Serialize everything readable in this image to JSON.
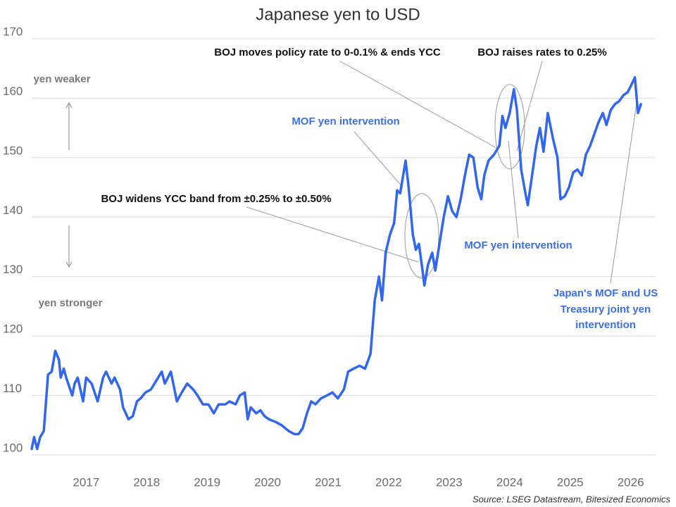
{
  "chart_data": {
    "type": "line",
    "title": "Japanese yen to USD",
    "x": [
      2016.6,
      2016.64,
      2016.69,
      2016.74,
      2016.8,
      2016.87,
      2016.93,
      2016.99,
      2017.05,
      2017.08,
      2017.13,
      2017.17,
      2017.27,
      2017.31,
      2017.36,
      2017.45,
      2017.5,
      2017.59,
      2017.69,
      2017.78,
      2017.83,
      2017.92,
      2017.97,
      2018.06,
      2018.11,
      2018.2,
      2018.27,
      2018.34,
      2018.4,
      2018.48,
      2018.57,
      2018.66,
      2018.75,
      2018.8,
      2018.85,
      2018.9,
      2018.94,
      2019.0,
      2019.08,
      2019.17,
      2019.27,
      2019.34,
      2019.43,
      2019.52,
      2019.61,
      2019.69,
      2019.8,
      2019.87,
      2019.97,
      2020.04,
      2020.12,
      2020.17,
      2020.22,
      2020.31,
      2020.38,
      2020.45,
      2020.52,
      2020.64,
      2020.73,
      2020.85,
      2020.94,
      2021.01,
      2021.08,
      2021.15,
      2021.22,
      2021.29,
      2021.38,
      2021.48,
      2021.57,
      2021.66,
      2021.76,
      2021.83,
      2021.92,
      2022.02,
      2022.11,
      2022.2,
      2022.27,
      2022.34,
      2022.39,
      2022.45,
      2022.52,
      2022.59,
      2022.64,
      2022.69,
      2022.78,
      2022.83,
      2022.9,
      2022.95,
      2023.0,
      2023.06,
      2023.09,
      2023.15,
      2023.22,
      2023.27,
      2023.34,
      2023.41,
      2023.48,
      2023.55,
      2023.62,
      2023.69,
      2023.76,
      2023.83,
      2023.9,
      2023.97,
      2024.03,
      2024.08,
      2024.15,
      2024.24,
      2024.33,
      2024.38,
      2024.43,
      2024.5,
      2024.57,
      2024.62,
      2024.69,
      2024.76,
      2024.8,
      2024.87,
      2024.94,
      2025.0,
      2025.06,
      2025.13,
      2025.22,
      2025.29,
      2025.34,
      2025.41,
      2025.48,
      2025.55,
      2025.62,
      2025.69,
      2025.76,
      2025.83,
      2025.9,
      2025.97,
      2026.04,
      2026.1,
      2026.17,
      2026.24,
      2026.31,
      2026.38,
      2026.45,
      2026.5,
      2026.57,
      2026.62,
      2026.67
    ],
    "values": [
      101,
      103,
      101,
      103,
      104,
      113.5,
      114,
      117.5,
      116,
      113,
      114.5,
      113,
      110,
      112,
      113,
      109,
      113,
      112,
      109,
      113,
      114,
      112,
      113,
      111,
      108,
      106,
      106.5,
      109,
      109.5,
      110.5,
      111,
      112.5,
      114,
      112,
      113,
      114,
      112,
      109,
      110.5,
      112,
      111,
      110,
      108.5,
      108.5,
      107,
      108.5,
      108.5,
      109,
      108.5,
      110,
      110.5,
      106,
      108,
      107,
      107.5,
      106.5,
      106,
      105.5,
      105,
      104,
      103.5,
      103.5,
      104.5,
      107,
      109,
      108.5,
      109.5,
      110,
      110.5,
      109.5,
      111,
      114,
      114.5,
      115,
      114.5,
      117,
      126,
      130,
      126,
      134,
      137,
      139,
      144.5,
      144,
      149.5,
      145,
      137,
      134.5,
      135.5,
      131,
      128.5,
      132,
      134,
      131,
      135.5,
      140,
      143.5,
      141,
      140,
      143,
      147,
      150.5,
      150,
      145,
      143,
      147,
      149.5,
      150.5,
      152,
      157,
      155,
      157.5,
      161.5,
      158,
      148,
      144,
      142,
      147,
      152,
      155,
      151,
      157.5,
      153,
      150,
      143,
      143.5,
      145,
      147.5,
      148,
      147,
      150.5,
      152,
      154,
      156,
      157.5,
      155.5,
      158,
      159,
      159.5,
      160.5,
      161,
      162,
      163.5,
      157.5,
      159
    ],
    "color": "#3366ee",
    "xlim": [
      2016.6,
      2026.9
    ],
    "xticks": [
      {
        "value": 2017.5,
        "label": "2017"
      },
      {
        "value": 2018.5,
        "label": "2018"
      },
      {
        "value": 2019.5,
        "label": "2019"
      },
      {
        "value": 2020.5,
        "label": "2020"
      },
      {
        "value": 2021.5,
        "label": "2021"
      },
      {
        "value": 2022.5,
        "label": "2022"
      },
      {
        "value": 2023.5,
        "label": "2023"
      },
      {
        "value": 2024.5,
        "label": "2024"
      },
      {
        "value": 2025.5,
        "label": "2025"
      },
      {
        "value": 2026.5,
        "label": "2026"
      }
    ],
    "ylim": [
      100,
      170
    ],
    "yticks": [
      100,
      110,
      120,
      130,
      140,
      150,
      160,
      170
    ],
    "grid": true,
    "annotations": [
      "BOJ moves policy rate to 0-0.1% & ends YCC",
      "BOJ raises rates to 0.25%",
      "MOF yen intervention",
      "BOJ widens YCC band from ±0.25% to ±0.50%",
      "MOF yen intervention",
      [
        "Japan's MOF and US",
        "Treasury joint yen",
        "intervention"
      ]
    ],
    "side_labels": [
      "yen weaker",
      "yen stronger"
    ],
    "source": "Source: LSEG Datastream, Bitesized Economics"
  }
}
